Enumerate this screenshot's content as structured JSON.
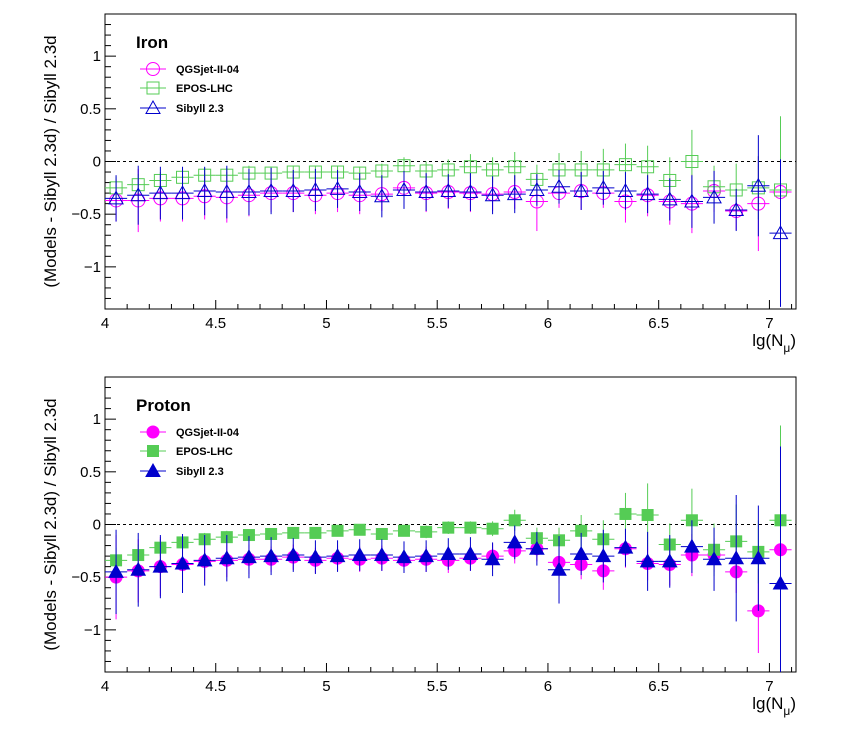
{
  "chart_data": [
    {
      "type": "scatter",
      "title": "Iron",
      "xlabel": "lg(N_μ)",
      "ylabel": "(Models - Sibyll 2.3d) / Sibyll 2.3d",
      "xlim": [
        4,
        7.12
      ],
      "ylim": [
        -1.4,
        1.4
      ],
      "x_ticks": [
        "4",
        "4.5",
        "5",
        "5.5",
        "6",
        "6.5",
        "7"
      ],
      "y_ticks": [
        "−1",
        "−0.5",
        "0",
        "0.5",
        "1"
      ],
      "reference_line": 0,
      "filled": false,
      "series": [
        {
          "name": "QGSjet-II-04",
          "marker": "circle",
          "color": "#ff00ff",
          "x": [
            4.05,
            4.15,
            4.25,
            4.35,
            4.45,
            4.55,
            4.65,
            4.75,
            4.85,
            4.95,
            5.05,
            5.15,
            5.25,
            5.35,
            5.45,
            5.55,
            5.65,
            5.75,
            5.85,
            5.95,
            6.05,
            6.15,
            6.25,
            6.35,
            6.45,
            6.55,
            6.65,
            6.75,
            6.85,
            6.95,
            7.05
          ],
          "y": [
            -0.37,
            -0.37,
            -0.35,
            -0.35,
            -0.33,
            -0.34,
            -0.32,
            -0.3,
            -0.3,
            -0.32,
            -0.3,
            -0.32,
            -0.31,
            -0.25,
            -0.3,
            -0.29,
            -0.3,
            -0.31,
            -0.29,
            -0.38,
            -0.3,
            -0.28,
            -0.3,
            -0.38,
            -0.32,
            -0.38,
            -0.4,
            -0.28,
            -0.47,
            -0.4,
            -0.29
          ],
          "err": [
            0.2,
            0.3,
            0.22,
            0.22,
            0.22,
            0.24,
            0.2,
            0.18,
            0.18,
            0.18,
            0.18,
            0.18,
            0.16,
            0.16,
            0.18,
            0.16,
            0.18,
            0.16,
            0.16,
            0.28,
            0.14,
            0.18,
            0.14,
            0.2,
            0.2,
            0.22,
            0.28,
            0.2,
            0.18,
            0.45,
            0.18
          ]
        },
        {
          "name": "EPOS-LHC",
          "marker": "square",
          "color": "#55cc55",
          "x": [
            4.05,
            4.15,
            4.25,
            4.35,
            4.45,
            4.55,
            4.65,
            4.75,
            4.85,
            4.95,
            5.05,
            5.15,
            5.25,
            5.35,
            5.45,
            5.55,
            5.65,
            5.75,
            5.85,
            5.95,
            6.05,
            6.15,
            6.25,
            6.35,
            6.45,
            6.55,
            6.65,
            6.75,
            6.85,
            6.95,
            7.05
          ],
          "y": [
            -0.25,
            -0.22,
            -0.18,
            -0.15,
            -0.13,
            -0.13,
            -0.11,
            -0.11,
            -0.1,
            -0.1,
            -0.1,
            -0.11,
            -0.09,
            -0.04,
            -0.09,
            -0.08,
            -0.05,
            -0.08,
            -0.05,
            -0.17,
            -0.08,
            -0.08,
            -0.08,
            -0.03,
            -0.05,
            -0.18,
            0.0,
            -0.24,
            -0.27,
            -0.25,
            -0.27
          ],
          "err": [
            0.1,
            0.1,
            0.08,
            0.08,
            0.07,
            0.07,
            0.07,
            0.06,
            0.06,
            0.06,
            0.06,
            0.06,
            0.07,
            0.08,
            0.09,
            0.1,
            0.12,
            0.12,
            0.14,
            0.14,
            0.16,
            0.18,
            0.2,
            0.2,
            0.2,
            0.22,
            0.3,
            0.2,
            0.25,
            0.3,
            0.7
          ]
        },
        {
          "name": "Sibyll 2.3",
          "marker": "triangle",
          "color": "#0000cc",
          "x": [
            4.05,
            4.15,
            4.25,
            4.35,
            4.45,
            4.55,
            4.65,
            4.75,
            4.85,
            4.95,
            5.05,
            5.15,
            5.25,
            5.35,
            5.45,
            5.55,
            5.65,
            5.75,
            5.85,
            5.95,
            6.05,
            6.15,
            6.25,
            6.35,
            6.45,
            6.55,
            6.65,
            6.75,
            6.85,
            6.95,
            7.05
          ],
          "y": [
            -0.35,
            -0.32,
            -0.3,
            -0.3,
            -0.28,
            -0.29,
            -0.29,
            -0.28,
            -0.28,
            -0.27,
            -0.26,
            -0.29,
            -0.33,
            -0.27,
            -0.29,
            -0.28,
            -0.29,
            -0.32,
            -0.31,
            -0.27,
            -0.24,
            -0.28,
            -0.25,
            -0.28,
            -0.31,
            -0.36,
            -0.38,
            -0.34,
            -0.46,
            -0.23,
            -0.68
          ],
          "err": [
            0.22,
            0.28,
            0.25,
            0.25,
            0.23,
            0.25,
            0.22,
            0.22,
            0.2,
            0.2,
            0.18,
            0.18,
            0.2,
            0.18,
            0.18,
            0.16,
            0.18,
            0.18,
            0.18,
            0.15,
            0.16,
            0.18,
            0.16,
            0.18,
            0.18,
            0.2,
            0.25,
            0.25,
            0.2,
            0.48,
            0.7
          ]
        }
      ]
    },
    {
      "type": "scatter",
      "title": "Proton",
      "xlabel": "lg(N_μ)",
      "ylabel": "(Models - Sibyll 2.3d) / Sibyll 2.3d",
      "xlim": [
        4,
        7.12
      ],
      "ylim": [
        -1.4,
        1.4
      ],
      "x_ticks": [
        "4",
        "4.5",
        "5",
        "5.5",
        "6",
        "6.5",
        "7"
      ],
      "y_ticks": [
        "−1",
        "−0.5",
        "0",
        "0.5",
        "1"
      ],
      "reference_line": 0,
      "filled": true,
      "series": [
        {
          "name": "QGSjet-II-04",
          "marker": "circle",
          "color": "#ff00ff",
          "x": [
            4.05,
            4.15,
            4.25,
            4.35,
            4.45,
            4.55,
            4.65,
            4.75,
            4.85,
            4.95,
            5.05,
            5.15,
            5.25,
            5.35,
            5.45,
            5.55,
            5.65,
            5.75,
            5.85,
            5.95,
            6.05,
            6.15,
            6.25,
            6.35,
            6.45,
            6.55,
            6.65,
            6.75,
            6.85,
            6.95,
            7.05
          ],
          "y": [
            -0.5,
            -0.44,
            -0.4,
            -0.38,
            -0.35,
            -0.34,
            -0.33,
            -0.33,
            -0.31,
            -0.34,
            -0.32,
            -0.33,
            -0.32,
            -0.34,
            -0.33,
            -0.34,
            -0.32,
            -0.3,
            -0.25,
            -0.23,
            -0.36,
            -0.38,
            -0.44,
            -0.23,
            -0.37,
            -0.38,
            -0.29,
            -0.29,
            -0.45,
            -0.82,
            -0.24
          ],
          "err": [
            0.4,
            0.3,
            0.28,
            0.2,
            0.18,
            0.16,
            0.14,
            0.12,
            0.12,
            0.12,
            0.12,
            0.12,
            0.12,
            0.12,
            0.12,
            0.12,
            0.12,
            0.12,
            0.12,
            0.12,
            0.2,
            0.14,
            0.18,
            0.18,
            0.16,
            0.2,
            0.2,
            0.16,
            0.2,
            0.4,
            0.3
          ]
        },
        {
          "name": "EPOS-LHC",
          "marker": "square",
          "color": "#55cc55",
          "x": [
            4.05,
            4.15,
            4.25,
            4.35,
            4.45,
            4.55,
            4.65,
            4.75,
            4.85,
            4.95,
            5.05,
            5.15,
            5.25,
            5.35,
            5.45,
            5.55,
            5.65,
            5.75,
            5.85,
            5.95,
            6.05,
            6.15,
            6.25,
            6.35,
            6.45,
            6.55,
            6.65,
            6.75,
            6.85,
            6.95,
            7.05
          ],
          "y": [
            -0.34,
            -0.29,
            -0.22,
            -0.17,
            -0.14,
            -0.12,
            -0.1,
            -0.09,
            -0.08,
            -0.08,
            -0.06,
            -0.05,
            -0.09,
            -0.06,
            -0.07,
            -0.03,
            -0.03,
            -0.04,
            0.04,
            -0.13,
            -0.15,
            -0.06,
            -0.14,
            0.1,
            0.09,
            -0.19,
            0.04,
            -0.24,
            -0.16,
            -0.26,
            0.04
          ],
          "err": [
            0.12,
            0.1,
            0.08,
            0.07,
            0.06,
            0.06,
            0.05,
            0.05,
            0.05,
            0.05,
            0.05,
            0.05,
            0.05,
            0.05,
            0.06,
            0.06,
            0.06,
            0.07,
            0.1,
            0.1,
            0.12,
            0.15,
            0.18,
            0.2,
            0.3,
            0.2,
            0.3,
            0.25,
            0.35,
            0.3,
            0.9
          ]
        },
        {
          "name": "Sibyll 2.3",
          "marker": "triangle",
          "color": "#0000cc",
          "x": [
            4.05,
            4.15,
            4.25,
            4.35,
            4.45,
            4.55,
            4.65,
            4.75,
            4.85,
            4.95,
            5.05,
            5.15,
            5.25,
            5.35,
            5.45,
            5.55,
            5.65,
            5.75,
            5.85,
            5.95,
            6.05,
            6.15,
            6.25,
            6.35,
            6.45,
            6.55,
            6.65,
            6.75,
            6.85,
            6.95,
            7.05
          ],
          "y": [
            -0.45,
            -0.43,
            -0.4,
            -0.37,
            -0.34,
            -0.32,
            -0.31,
            -0.3,
            -0.29,
            -0.31,
            -0.3,
            -0.29,
            -0.29,
            -0.31,
            -0.3,
            -0.28,
            -0.28,
            -0.33,
            -0.17,
            -0.23,
            -0.43,
            -0.28,
            -0.3,
            -0.22,
            -0.35,
            -0.35,
            -0.21,
            -0.33,
            -0.32,
            -0.32,
            -0.56
          ],
          "err": [
            0.4,
            0.35,
            0.3,
            0.28,
            0.24,
            0.22,
            0.2,
            0.18,
            0.16,
            0.16,
            0.15,
            0.15,
            0.15,
            0.15,
            0.15,
            0.15,
            0.16,
            0.16,
            0.16,
            0.16,
            0.32,
            0.2,
            0.25,
            0.18,
            0.28,
            0.25,
            0.25,
            0.3,
            0.6,
            0.5,
            1.3
          ]
        }
      ]
    }
  ]
}
